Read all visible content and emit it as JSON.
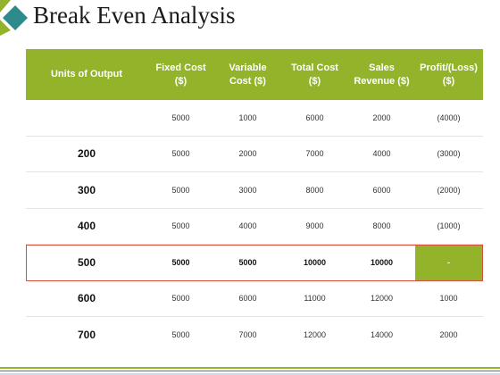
{
  "title": "Break Even Analysis",
  "colors": {
    "accent": "#93b42a",
    "logo_teal": "#2e8b8b",
    "logo_green": "#93b42a",
    "highlight_border": "#d4503a"
  },
  "icons": {
    "logo": "diamond-logo-icon"
  },
  "table": {
    "headers": {
      "units": "Units of Output",
      "fixed_l1": "Fixed Cost",
      "fixed_l2": "($)",
      "variable_l1": "Variable",
      "variable_l2": "Cost ($)",
      "total_l1": "Total Cost",
      "total_l2": "($)",
      "sales_l1": "Sales",
      "sales_l2": "Revenue ($)",
      "profit_l1": "Profit/(Loss)",
      "profit_l2": "($)"
    },
    "rows": [
      {
        "units": "",
        "fixed": "5000",
        "variable": "1000",
        "total": "6000",
        "sales": "2000",
        "profit": "(4000)"
      },
      {
        "units": "200",
        "fixed": "5000",
        "variable": "2000",
        "total": "7000",
        "sales": "4000",
        "profit": "(3000)"
      },
      {
        "units": "300",
        "fixed": "5000",
        "variable": "3000",
        "total": "8000",
        "sales": "6000",
        "profit": "(2000)"
      },
      {
        "units": "400",
        "fixed": "5000",
        "variable": "4000",
        "total": "9000",
        "sales": "8000",
        "profit": "(1000)"
      },
      {
        "units": "500",
        "fixed": "5000",
        "variable": "5000",
        "total": "10000",
        "sales": "10000",
        "profit": "-"
      },
      {
        "units": "600",
        "fixed": "5000",
        "variable": "6000",
        "total": "11000",
        "sales": "12000",
        "profit": "1000"
      },
      {
        "units": "700",
        "fixed": "5000",
        "variable": "7000",
        "total": "12000",
        "sales": "14000",
        "profit": "2000"
      }
    ]
  }
}
